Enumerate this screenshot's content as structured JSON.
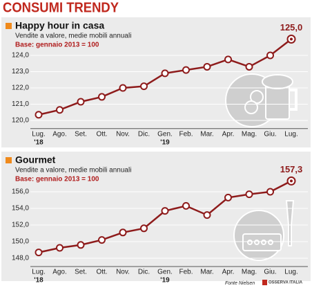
{
  "title": "CONSUMI TRENDY",
  "source": "Fonte Nielsen",
  "logo": "OSSERVA ITALIA",
  "chart_data": [
    {
      "type": "line",
      "title": "Happy hour in casa",
      "subtitle": "Vendite a valore, medie mobili annuali",
      "note": "Base: gennaio 2013 = 100",
      "categories": [
        "Lug.",
        "Ago.",
        "Set.",
        "Ott.",
        "Nov.",
        "Dic.",
        "Gen.",
        "Feb.",
        "Mar.",
        "Apr.",
        "Mag.",
        "Giu.",
        "Lug."
      ],
      "category_years": [
        "'18",
        null,
        null,
        null,
        null,
        null,
        "'19",
        null,
        null,
        null,
        null,
        null,
        null
      ],
      "values": [
        120.35,
        120.65,
        121.15,
        121.45,
        122.0,
        122.1,
        122.9,
        123.1,
        123.3,
        123.75,
        123.3,
        124.0,
        125.0
      ],
      "value_labels": [
        null,
        null,
        null,
        null,
        null,
        null,
        null,
        null,
        null,
        null,
        null,
        null,
        "125,0"
      ],
      "color": "#8e1b1b",
      "ylim": [
        119.5,
        125.3
      ],
      "yticks": [
        {
          "value": 120,
          "label": "120,0"
        },
        {
          "value": 121,
          "label": "121,0"
        },
        {
          "value": 122,
          "label": "122,0"
        },
        {
          "value": 123,
          "label": "123,0"
        },
        {
          "value": 124,
          "label": "124,0"
        }
      ],
      "grid": true
    },
    {
      "type": "line",
      "title": "Gourmet",
      "subtitle": "Vendite a valore, medie mobili annuali",
      "note": "Base: gennaio 2013 = 100",
      "categories": [
        "Lug.",
        "Ago.",
        "Set.",
        "Ott.",
        "Nov.",
        "Dic.",
        "Gen.",
        "Feb.",
        "Mar.",
        "Apr.",
        "Mag.",
        "Giu.",
        "Lug."
      ],
      "category_years": [
        "'18",
        null,
        null,
        null,
        null,
        null,
        "'19",
        null,
        null,
        null,
        null,
        null,
        null
      ],
      "values": [
        148.7,
        149.25,
        149.6,
        150.2,
        151.1,
        151.6,
        153.7,
        154.3,
        153.2,
        155.3,
        155.7,
        156.0,
        157.3
      ],
      "value_labels": [
        null,
        null,
        null,
        null,
        null,
        null,
        null,
        null,
        null,
        null,
        null,
        null,
        "157,3"
      ],
      "color": "#8e1b1b",
      "ylim": [
        147,
        157.8
      ],
      "yticks": [
        {
          "value": 148,
          "label": "148,0"
        },
        {
          "value": 150,
          "label": "150,0"
        },
        {
          "value": 152,
          "label": "152,0"
        },
        {
          "value": 154,
          "label": "154,0"
        },
        {
          "value": 156,
          "label": "156,0"
        }
      ],
      "grid": true
    }
  ]
}
